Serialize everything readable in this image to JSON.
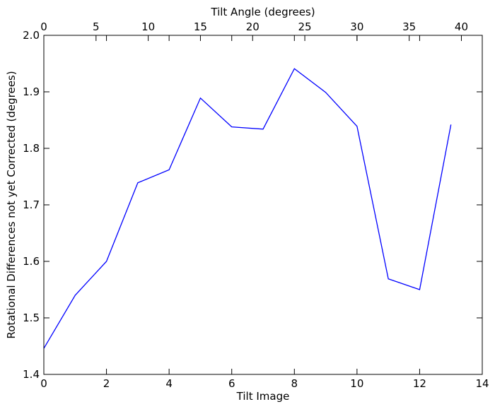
{
  "chart_data": {
    "type": "line",
    "xlabel": "Tilt Image",
    "ylabel": "Rotational Differences not yet Corrected (degrees)",
    "top_xlabel": "Tilt Angle (degrees)",
    "xlim": [
      0,
      14
    ],
    "ylim": [
      1.4,
      2.0
    ],
    "top_xlim": [
      0,
      42
    ],
    "grid": false,
    "legend": "none",
    "x_ticks": [
      0,
      2,
      4,
      6,
      8,
      10,
      12,
      14
    ],
    "x_tick_labels": [
      "0",
      "2",
      "4",
      "6",
      "8",
      "10",
      "12",
      "14"
    ],
    "y_ticks": [
      1.4,
      1.5,
      1.6,
      1.7,
      1.8,
      1.9,
      2.0
    ],
    "y_tick_labels": [
      "1.4",
      "1.5",
      "1.6",
      "1.7",
      "1.8",
      "1.9",
      "2.0"
    ],
    "top_ticks": [
      0,
      5,
      10,
      15,
      20,
      25,
      30,
      35,
      40
    ],
    "top_tick_labels": [
      "0",
      "5",
      "10",
      "15",
      "20",
      "25",
      "30",
      "35",
      "40"
    ],
    "series": [
      {
        "color": "#0000ff",
        "x": [
          0,
          1,
          2,
          3,
          4,
          5,
          6,
          7,
          8,
          9,
          10,
          11,
          12,
          13
        ],
        "y": [
          1.446,
          1.54,
          1.6,
          1.739,
          1.762,
          1.889,
          1.838,
          1.834,
          1.941,
          1.899,
          1.839,
          1.569,
          1.55,
          1.842
        ]
      }
    ]
  }
}
